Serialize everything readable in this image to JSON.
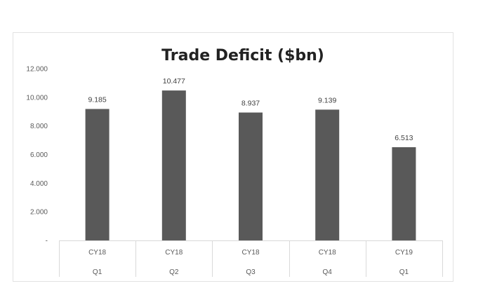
{
  "chart_data": {
    "type": "bar",
    "title": "Trade Deficit ($bn)",
    "categories": [
      [
        "CY18",
        "Q1"
      ],
      [
        "CY18",
        "Q2"
      ],
      [
        "CY18",
        "Q3"
      ],
      [
        "CY18",
        "Q4"
      ],
      [
        "CY19",
        "Q1"
      ]
    ],
    "values": [
      9.185,
      10.477,
      8.937,
      9.139,
      6.513
    ],
    "data_labels": [
      "9.185",
      "10.477",
      "8.937",
      "9.139",
      "6.513"
    ],
    "ylim": [
      0,
      12
    ],
    "yticks": [
      0,
      2,
      4,
      6,
      8,
      10,
      12
    ],
    "ytick_labels": [
      "-",
      "2.000",
      "4.000",
      "6.000",
      "8.000",
      "10.000",
      "12.000"
    ],
    "grid": false,
    "bar_color": "#595959",
    "xlabel": "",
    "ylabel": ""
  }
}
